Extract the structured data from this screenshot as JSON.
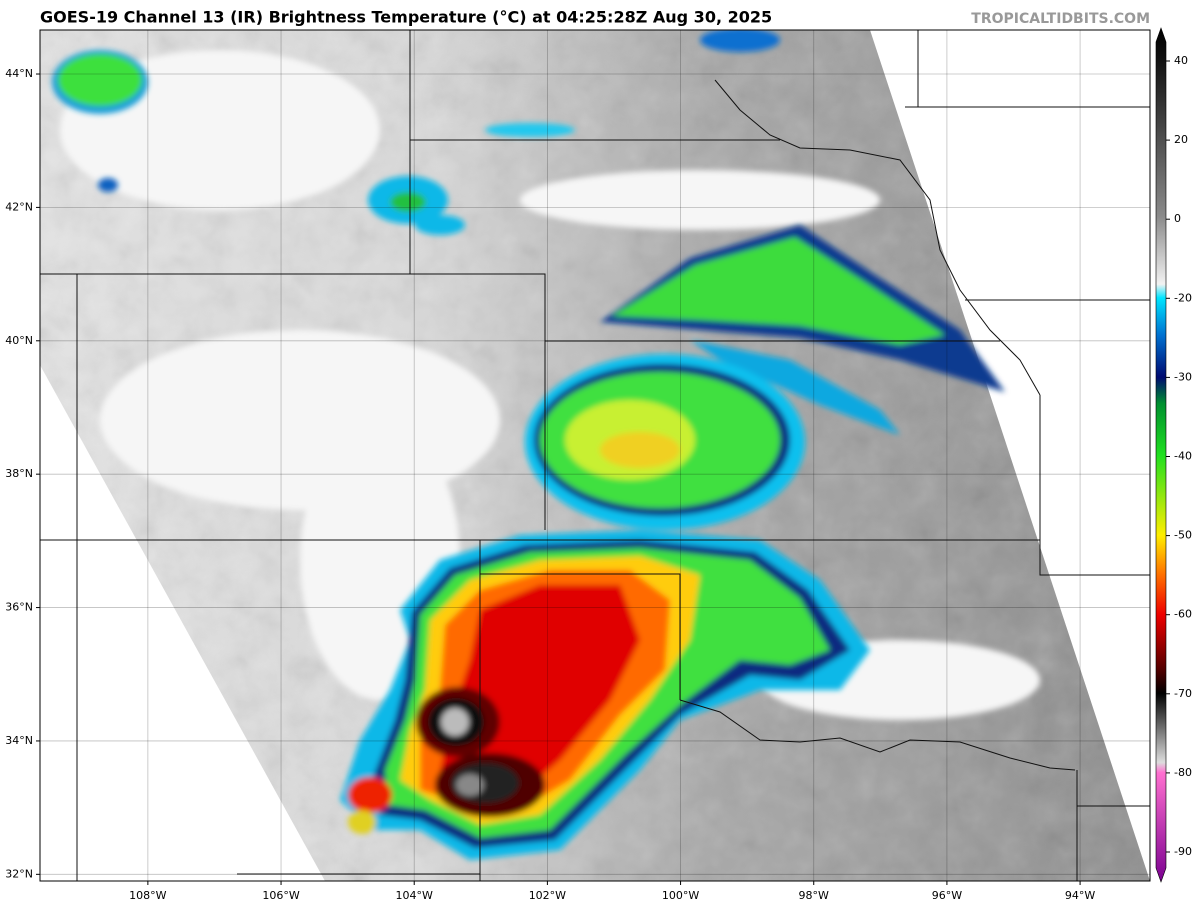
{
  "header": {
    "title": "GOES-19 Channel 13 (IR) Brightness Temperature (°C) at 04:25:28Z Aug 30, 2025",
    "source": "TROPICALTIDBITS.COM"
  },
  "map": {
    "xlim": [
      -109.62,
      -92.95
    ],
    "ylim": [
      31.9,
      44.66
    ],
    "lat_ticks": [
      {
        "value": 44,
        "label": "44°N"
      },
      {
        "value": 42,
        "label": "42°N"
      },
      {
        "value": 40,
        "label": "40°N"
      },
      {
        "value": 38,
        "label": "38°N"
      },
      {
        "value": 36,
        "label": "36°N"
      },
      {
        "value": 34,
        "label": "34°N"
      },
      {
        "value": 32,
        "label": "32°N"
      }
    ],
    "lon_ticks": [
      {
        "value": -108,
        "label": "108°W"
      },
      {
        "value": -106,
        "label": "106°W"
      },
      {
        "value": -104,
        "label": "104°W"
      },
      {
        "value": -102,
        "label": "102°W"
      },
      {
        "value": -100,
        "label": "100°W"
      },
      {
        "value": -98,
        "label": "98°W"
      },
      {
        "value": -96,
        "label": "96°W"
      },
      {
        "value": -94,
        "label": "94°W"
      }
    ]
  },
  "colorbar": {
    "ticks": [
      40,
      20,
      0,
      -20,
      -30,
      -40,
      -50,
      -60,
      -70,
      -80,
      -90
    ]
  }
}
